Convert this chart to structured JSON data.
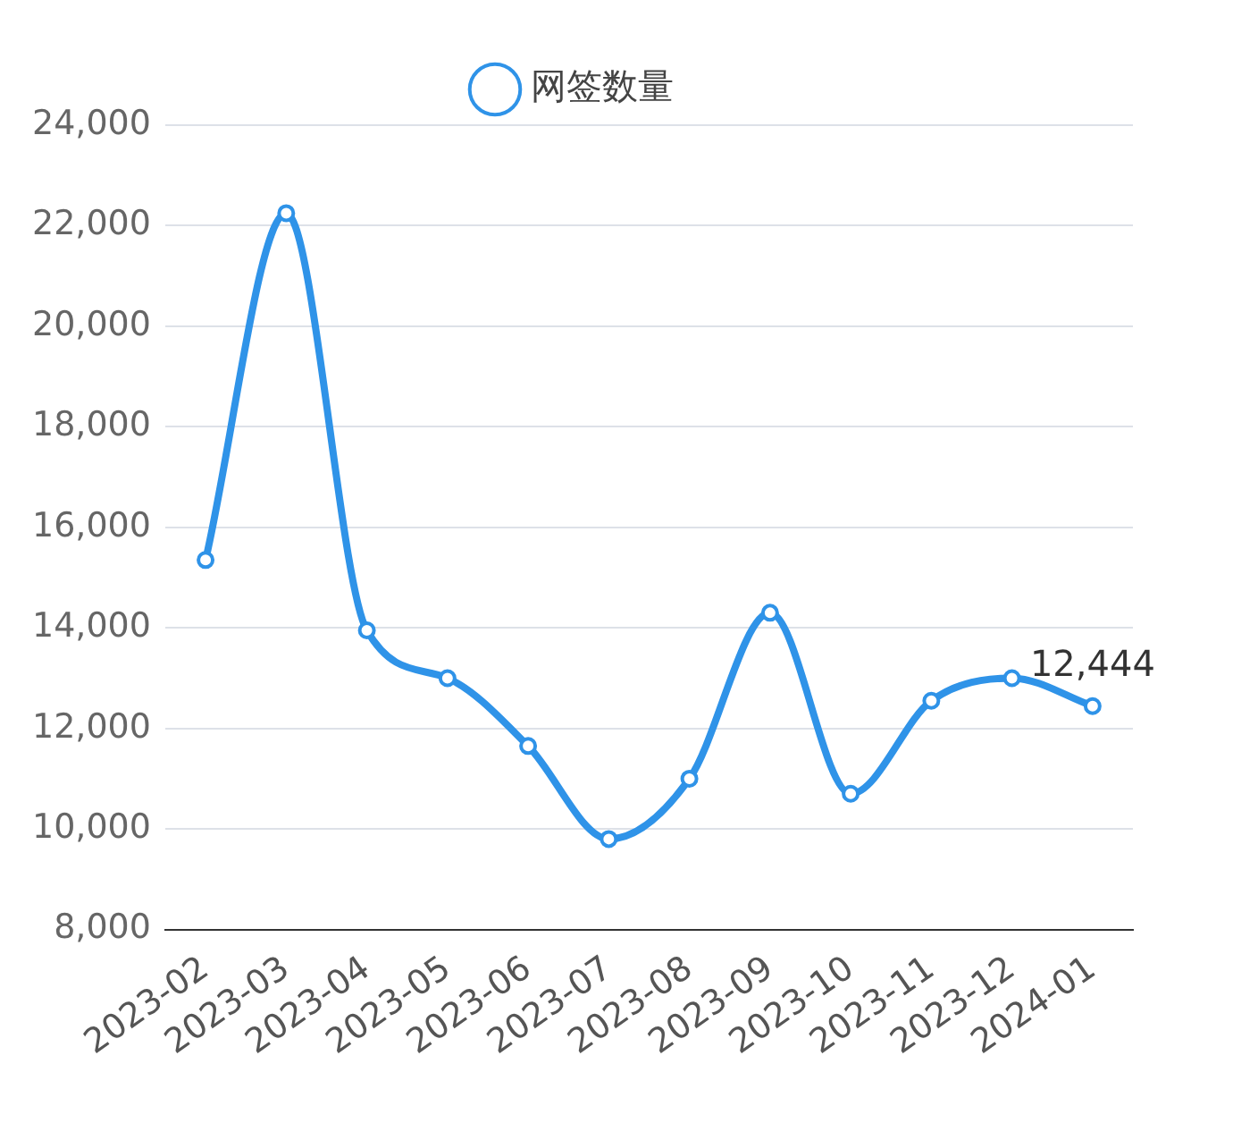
{
  "chart_data": {
    "type": "line",
    "categories": [
      "2023-02",
      "2023-03",
      "2023-04",
      "2023-05",
      "2023-06",
      "2023-07",
      "2023-08",
      "2023-09",
      "2023-10",
      "2023-11",
      "2023-12",
      "2024-01"
    ],
    "series": [
      {
        "name": "网签数量",
        "color": "#2f93e8",
        "values": [
          15350,
          22250,
          13950,
          13000,
          11650,
          9800,
          11000,
          14300,
          10700,
          12550,
          13000,
          12444
        ],
        "value_labels": [
          null,
          null,
          null,
          null,
          null,
          null,
          null,
          null,
          null,
          null,
          null,
          "12,444"
        ]
      }
    ],
    "ylim": [
      8000,
      24000
    ],
    "yticks": [
      {
        "value": 8000,
        "label": "8,000"
      },
      {
        "value": 10000,
        "label": "10,000"
      },
      {
        "value": 12000,
        "label": "12,000"
      },
      {
        "value": 14000,
        "label": "14,000"
      },
      {
        "value": 16000,
        "label": "16,000"
      },
      {
        "value": 18000,
        "label": "18,000"
      },
      {
        "value": 20000,
        "label": "20,000"
      },
      {
        "value": 22000,
        "label": "22,000"
      },
      {
        "value": 24000,
        "label": "24,000"
      }
    ],
    "grid": "y",
    "legend": "top",
    "marker": "circle",
    "line_style": "solid"
  }
}
